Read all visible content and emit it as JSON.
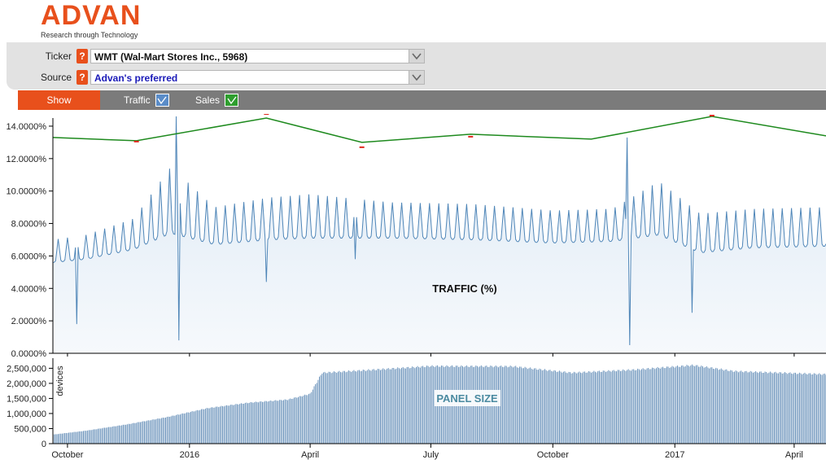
{
  "brand": {
    "logo_text": "ADVAN",
    "tagline": "Research through Technology"
  },
  "controls": {
    "ticker_label": "Ticker",
    "ticker_value": "WMT (Wal-Mart Stores Inc., 5968)",
    "source_label": "Source",
    "source_value": "Advan's preferred",
    "help_symbol": "?",
    "show_button": "Show",
    "traffic_toggle": "Traffic",
    "sales_toggle": "Sales",
    "traffic_checked": true,
    "sales_checked": true
  },
  "colors": {
    "brand_orange": "#e8501c",
    "traffic_line": "#4f86b8",
    "traffic_fill": "#e8f0f8",
    "sales_line": "#1e8a1e",
    "sales_marker": "#e0281e",
    "panel_bars": "#6f96bd"
  },
  "chart_data": [
    {
      "type": "line",
      "overlay_label": "TRAFFIC (%)",
      "ylim": [
        0,
        14.5
      ],
      "yticks": [
        0,
        2,
        4,
        6,
        8,
        10,
        12,
        14
      ],
      "ytick_labels": [
        "0.0000%",
        "2.0000%",
        "4.0000%",
        "6.0000%",
        "8.0000%",
        "10.0000%",
        "12.0000%",
        "14.0000%"
      ],
      "x_range": [
        "2015-09-20",
        "2017-04-25"
      ],
      "series": [
        {
          "kind": "traffic_weekly_pattern",
          "anchors_date": [
            "2015-09-20",
            "2015-10-15",
            "2015-11-20",
            "2015-12-18",
            "2016-01-20",
            "2016-03-01",
            "2016-04-01",
            "2016-06-01",
            "2016-08-01",
            "2016-10-01",
            "2016-11-15",
            "2016-12-20",
            "2017-01-20",
            "2017-03-01",
            "2017-04-25"
          ],
          "anchors_base": [
            5.6,
            5.8,
            6.4,
            7.4,
            6.7,
            7.0,
            7.1,
            7.1,
            7.0,
            6.8,
            6.9,
            7.3,
            6.2,
            6.5,
            6.6
          ],
          "anchors_peak": [
            7.0,
            7.3,
            8.3,
            11.5,
            9.0,
            9.6,
            9.8,
            9.3,
            9.2,
            8.8,
            8.9,
            10.6,
            8.6,
            8.9,
            9.0
          ],
          "spikes": [
            {
              "x": "2015-10-08",
              "y": 1.8
            },
            {
              "x": "2015-12-22",
              "y": 14.6
            },
            {
              "x": "2015-12-24",
              "y": 0.8
            },
            {
              "x": "2016-02-28",
              "y": 4.4
            },
            {
              "x": "2016-05-05",
              "y": 5.8
            },
            {
              "x": "2016-11-26",
              "y": 13.3
            },
            {
              "x": "2016-11-28",
              "y": 0.5
            },
            {
              "x": "2017-01-14",
              "y": 2.5
            }
          ]
        },
        {
          "kind": "sales",
          "x": [
            "2015-09-20",
            "2015-11-22",
            "2016-02-28",
            "2016-05-10",
            "2016-07-31",
            "2016-10-30",
            "2017-01-29",
            "2017-04-25"
          ],
          "y": [
            13.3,
            13.1,
            14.5,
            13.0,
            13.5,
            13.2,
            14.6,
            13.4
          ],
          "markers": [
            {
              "x": "2015-11-22",
              "y": 13.05
            },
            {
              "x": "2016-02-28",
              "y": 14.75
            },
            {
              "x": "2016-05-10",
              "y": 12.7
            },
            {
              "x": "2016-07-31",
              "y": 13.35
            },
            {
              "x": "2017-01-29",
              "y": 14.65
            }
          ]
        }
      ]
    },
    {
      "type": "bar",
      "overlay_label": "PANEL SIZE",
      "ylabel": "devices",
      "ylim": [
        0,
        2700000
      ],
      "yticks": [
        0,
        500000,
        1000000,
        1500000,
        2000000,
        2500000
      ],
      "ytick_labels": [
        "0",
        "500,000",
        "1,000,000",
        "1,500,000",
        "2,000,000",
        "2,500,000"
      ],
      "x_range": [
        "2015-09-20",
        "2017-04-25"
      ],
      "xticks": [
        "2015-10-01",
        "2016-01-01",
        "2016-04-01",
        "2016-07-01",
        "2016-10-01",
        "2017-01-01",
        "2017-04-01"
      ],
      "xtick_labels": [
        "October",
        "2016",
        "April",
        "July",
        "October",
        "2017",
        "April"
      ],
      "series": [
        {
          "kind": "panel_daily",
          "anchors_date": [
            "2015-09-20",
            "2015-10-15",
            "2015-11-15",
            "2015-12-15",
            "2016-01-15",
            "2016-02-15",
            "2016-03-15",
            "2016-04-01",
            "2016-04-10",
            "2016-05-15",
            "2016-07-01",
            "2016-09-01",
            "2016-10-15",
            "2016-12-01",
            "2017-01-15",
            "2017-02-15",
            "2017-04-25"
          ],
          "anchors_value": [
            300000,
            430000,
            640000,
            880000,
            1180000,
            1360000,
            1460000,
            1650000,
            2350000,
            2440000,
            2570000,
            2560000,
            2350000,
            2450000,
            2600000,
            2400000,
            2300000
          ]
        }
      ]
    }
  ]
}
